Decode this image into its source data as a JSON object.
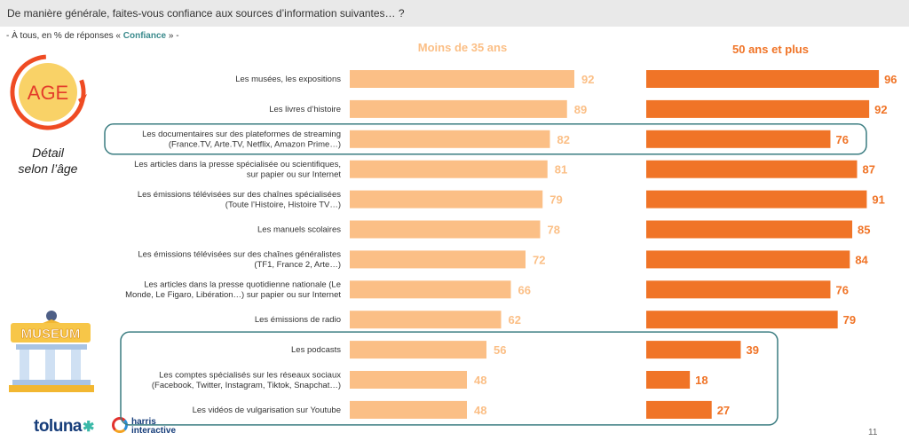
{
  "header": {
    "question": "De manière générale, faites-vous confiance aux sources d’information suivantes… ?",
    "subtitle_prefix": "- À tous, en % de réponses « ",
    "subtitle_highlight": "Confiance",
    "subtitle_suffix": " » -"
  },
  "sidebar": {
    "age_label": "AGE",
    "detail_line1": "Détail",
    "detail_line2": "selon l’âge",
    "museum_label": "MUSEUM"
  },
  "footer": {
    "toluna": "toluna",
    "harris_line1": "harris",
    "harris_line2": "interactive",
    "page_number": "11"
  },
  "colors": {
    "young": "#fbbf86",
    "old": "#f07427",
    "highlight_border": "#3a7c80",
    "label_text": "#333333"
  },
  "chart_data": {
    "type": "bar",
    "orientation": "horizontal",
    "categories": [
      [
        "Les musées, les expositions"
      ],
      [
        "Les livres d’histoire"
      ],
      [
        "Les documentaires sur des plateformes de streaming",
        "(France.TV, Arte.TV, Netflix, Amazon Prime…)"
      ],
      [
        "Les articles dans la presse spécialisée ou scientifiques,",
        "sur papier ou sur Internet"
      ],
      [
        "Les émissions télévisées sur des chaînes spécialisées",
        "(Toute l’Histoire, Histoire TV…)"
      ],
      [
        "Les manuels scolaires"
      ],
      [
        "Les émissions télévisées sur des chaînes généralistes",
        "(TF1, France 2, Arte…)"
      ],
      [
        "Les articles dans la presse quotidienne nationale (Le",
        "Monde, Le Figaro, Libération…) sur papier ou sur Internet"
      ],
      [
        "Les émissions de radio"
      ],
      [
        "Les podcasts"
      ],
      [
        "Les comptes spécialisés sur les réseaux sociaux",
        "(Facebook, Twitter, Instagram, Tiktok, Snapchat…)"
      ],
      [
        "Les vidéos de vulgarisation sur Youtube"
      ]
    ],
    "series": [
      {
        "name": "Moins de 35 ans",
        "values": [
          92,
          89,
          82,
          81,
          79,
          78,
          72,
          66,
          62,
          56,
          48,
          48
        ]
      },
      {
        "name": "50 ans et plus",
        "values": [
          96,
          92,
          76,
          87,
          91,
          85,
          84,
          76,
          79,
          39,
          18,
          27
        ]
      }
    ],
    "xlim": [
      0,
      100
    ],
    "highlighted_rows": [
      [
        2
      ],
      [
        9,
        10,
        11
      ]
    ]
  }
}
